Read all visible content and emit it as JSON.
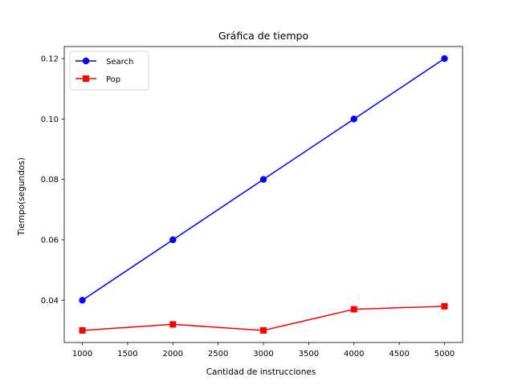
{
  "chart_data": {
    "type": "line",
    "title": "Gráfica de tiempo",
    "xlabel": "Cantidad de instrucciones",
    "ylabel": "Tiempo(segundos)",
    "x": [
      1000,
      2000,
      3000,
      4000,
      5000
    ],
    "xlim": [
      800,
      5200
    ],
    "ylim": [
      0.026,
      0.124
    ],
    "xticks": [
      1000,
      1500,
      2000,
      2500,
      3000,
      3500,
      4000,
      4500,
      5000
    ],
    "xtick_labels": [
      "1000",
      "1500",
      "2000",
      "2500",
      "3000",
      "3500",
      "4000",
      "4500",
      "5000"
    ],
    "yticks": [
      0.04,
      0.06,
      0.08,
      0.1,
      0.12
    ],
    "ytick_labels": [
      "0.04",
      "0.06",
      "0.08",
      "0.10",
      "0.12"
    ],
    "grid": false,
    "legend_position": "top-left",
    "series": [
      {
        "name": "Search",
        "color": "#0000ff",
        "marker": "circle",
        "values": [
          0.04,
          0.06,
          0.08,
          0.1,
          0.12
        ]
      },
      {
        "name": "Pop",
        "color": "#ff0000",
        "marker": "square",
        "values": [
          0.03,
          0.032,
          0.03,
          0.037,
          0.038
        ]
      }
    ]
  }
}
